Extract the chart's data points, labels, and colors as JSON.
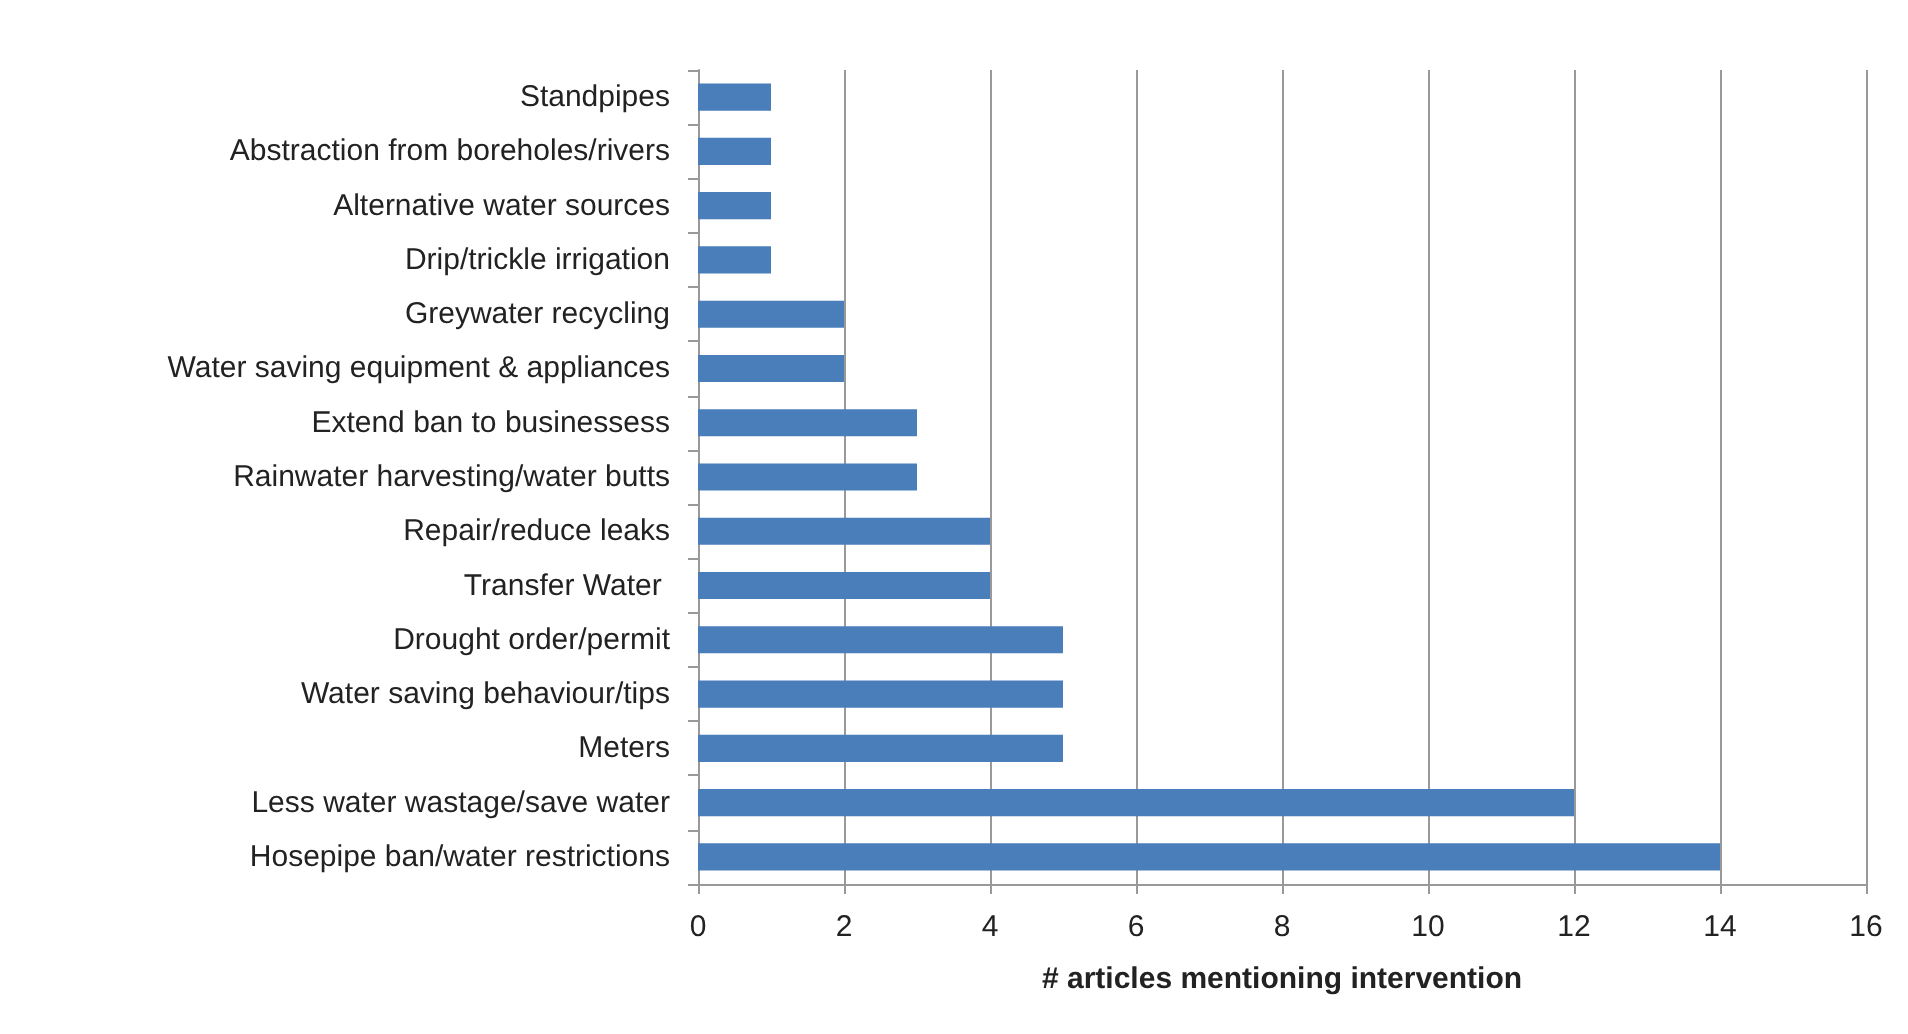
{
  "chart_data": {
    "type": "bar",
    "orientation": "horizontal",
    "xlabel": "# articles mentioning intervention",
    "categories": [
      "Standpipes",
      "Abstraction from boreholes/rivers",
      "Alternative water sources",
      "Drip/trickle irrigation",
      "Greywater recycling",
      "Water saving equipment & appliances",
      "Extend ban to businessess",
      "Rainwater harvesting/water butts",
      "Repair/reduce leaks",
      "Transfer Water ",
      "Drought order/permit",
      "Water saving behaviour/tips",
      "Meters",
      "Less water wastage/save water",
      "Hosepipe ban/water restrictions"
    ],
    "values": [
      1,
      1,
      1,
      1,
      2,
      2,
      3,
      3,
      4,
      4,
      5,
      5,
      5,
      12,
      14
    ],
    "color": "#4a7ebb",
    "xlim": [
      0,
      16
    ],
    "xticks": [
      0,
      2,
      4,
      6,
      8,
      10,
      12,
      14,
      16
    ],
    "grid": "x"
  }
}
